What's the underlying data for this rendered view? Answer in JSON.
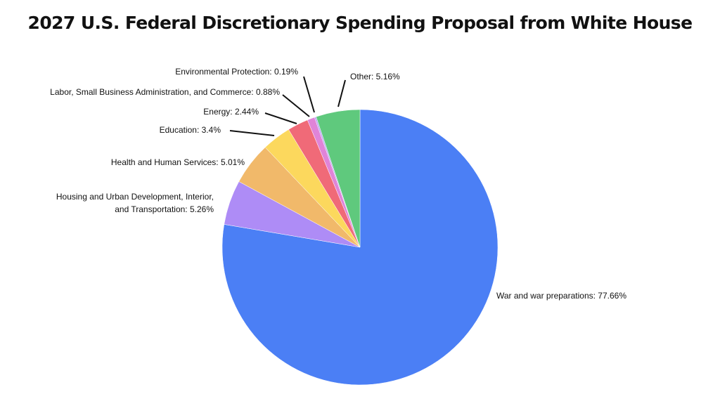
{
  "chart_data": {
    "type": "pie",
    "title": "2027 U.S. Federal Discretionary Spending Proposal from White House",
    "start_angle_deg": 0,
    "direction": "clockwise",
    "slices": [
      {
        "label": "War and war preparations: 77.66%",
        "value": 77.66,
        "color": "#4b7ff5"
      },
      {
        "label": "Housing and Urban Development, Interior, and Transportation: 5.26%",
        "value": 5.26,
        "color": "#ae8cf6"
      },
      {
        "label": "Health and Human Services: 5.01%",
        "value": 5.01,
        "color": "#f1b96a"
      },
      {
        "label": "Education: 3.4%",
        "value": 3.4,
        "color": "#fcd85d"
      },
      {
        "label": "Energy: 2.44%",
        "value": 2.44,
        "color": "#f06a78"
      },
      {
        "label": "Labor, Small Business Administration, and Commerce: 0.88%",
        "value": 0.88,
        "color": "#e084d8"
      },
      {
        "label": "Environmental Protection: 0.19%",
        "value": 0.19,
        "color": "#b9a4f4"
      },
      {
        "label": "Other: 5.16%",
        "value": 5.16,
        "color": "#5fc97d"
      }
    ]
  }
}
